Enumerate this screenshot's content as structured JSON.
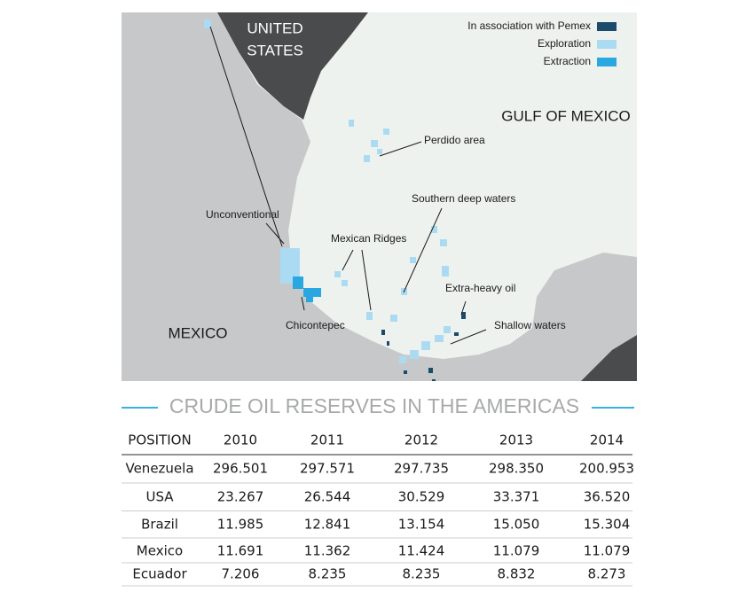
{
  "map": {
    "us_label": [
      "UNITED",
      "STATES"
    ],
    "gulf_label": "GULF OF MEXICO",
    "mexico_label": "MEXICO",
    "callouts": [
      "Perdido area",
      "Southern deep waters",
      "Mexican Ridges",
      "Unconventional",
      "Extra-heavy oil",
      "Shallow waters",
      "Chicontepec"
    ],
    "legend": [
      {
        "name": "In association with Pemex",
        "color": "#1b4a6b"
      },
      {
        "name": "Exploration",
        "color": "#abdbf3"
      },
      {
        "name": "Extraction",
        "color": "#2aa7e0"
      }
    ]
  },
  "table": {
    "title": "CRUDE OIL RESERVES IN THE AMERICAS",
    "header": [
      "POSITION",
      "2010",
      "2011",
      "2012",
      "2013",
      "2014"
    ],
    "rows": [
      [
        "Venezuela",
        "296.501",
        "297.571",
        "297.735",
        "298.350",
        "200.953"
      ],
      [
        "USA",
        "23.267",
        "26.544",
        "30.529",
        "33.371",
        "36.520"
      ],
      [
        "Brazil",
        "11.985",
        "12.841",
        "13.154",
        "15.050",
        "15.304"
      ],
      [
        "Mexico",
        "11.691",
        "11.362",
        "11.424",
        "11.079",
        "11.079"
      ],
      [
        "Ecuador",
        "7.206",
        "8.235",
        "8.235",
        "8.832",
        "8.273"
      ]
    ]
  }
}
